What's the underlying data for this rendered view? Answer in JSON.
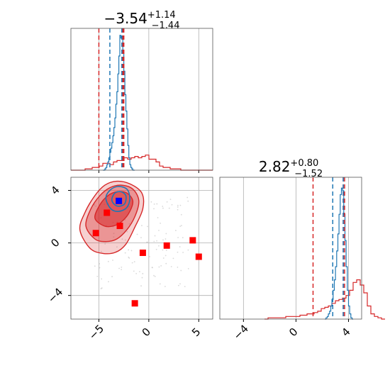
{
  "chart_data": {
    "type": "corner",
    "colors": {
      "red": "#d62728",
      "blue": "#1f77b4",
      "marker_blue": "#0000ff",
      "marker_red": "#ff0000",
      "grid": "#b0b0b0",
      "scatter": "#c0c0c0"
    },
    "grid": true,
    "param1": {
      "title": {
        "median": "−3.54",
        "plus": "+1.14",
        "minus": "−1.44"
      },
      "range": [
        -7.8,
        6.4
      ],
      "ticks": [
        -5,
        0,
        5
      ],
      "tick_labels": [
        "−5",
        "0",
        "5"
      ],
      "red_quantiles": [
        -5.0,
        -2.6,
        -2.5
      ],
      "blue_quantiles": [
        -3.9,
        -2.7
      ],
      "hist_red": {
        "x0": -7.8,
        "dx": 0.355,
        "counts": [
          0,
          0,
          0,
          0,
          1,
          1,
          2,
          2,
          3,
          5,
          5,
          4,
          6,
          7,
          7,
          9,
          8,
          9,
          10,
          9,
          10,
          11,
          8,
          8,
          6,
          3,
          2,
          2,
          1,
          1,
          1,
          0,
          0,
          0,
          0,
          0,
          0,
          0,
          0,
          0
        ]
      },
      "hist_blue": {
        "x0": -4.6,
        "dx": 0.1,
        "counts": [
          0,
          0,
          1,
          2,
          4,
          6,
          9,
          13,
          16,
          20,
          25,
          31,
          38,
          48,
          57,
          70,
          83,
          98,
          96,
          97,
          85,
          72,
          55,
          43,
          30,
          18,
          9,
          4,
          2,
          1,
          0,
          0
        ]
      },
      "hist_ymax": 100
    },
    "param2": {
      "title": {
        "median": "2.82",
        "plus": "+0.80",
        "minus": "−1.52"
      },
      "range": [
        -5.8,
        5.0
      ],
      "ticks": [
        -4,
        0,
        4
      ],
      "tick_labels": [
        "−4",
        "0",
        "4"
      ],
      "red_quantiles": [
        1.3,
        3.6,
        3.7
      ],
      "blue_quantiles": [
        2.8,
        3.6
      ],
      "hist_red": {
        "x0": -2.4,
        "dx": 0.27,
        "counts": [
          0,
          1,
          1,
          1,
          1,
          1,
          2,
          2,
          2,
          2,
          3,
          3,
          4,
          4,
          5,
          6,
          8,
          9,
          10,
          12,
          14,
          15,
          16,
          18,
          22,
          28,
          30,
          26,
          20,
          10,
          4,
          2,
          1,
          0
        ]
      },
      "hist_blue": {
        "x0": 2.2,
        "dx": 0.09,
        "counts": [
          0,
          1,
          2,
          4,
          6,
          10,
          15,
          22,
          30,
          40,
          52,
          65,
          80,
          95,
          100,
          98,
          80,
          60,
          40,
          22,
          10,
          4,
          1,
          0
        ]
      },
      "hist_ymax": 105
    },
    "scatter_2d": {
      "x_range": [
        -7.8,
        6.4
      ],
      "y_range": [
        -5.8,
        5.0
      ],
      "x_ticks": [
        -5,
        0,
        5
      ],
      "x_tick_labels": [
        "−5",
        "0",
        "5"
      ],
      "y_ticks": [
        -4,
        0,
        4
      ],
      "y_tick_labels": [
        "−4",
        "0",
        "4"
      ],
      "red_markers": [
        {
          "x": -5.3,
          "y": 0.75
        },
        {
          "x": -4.2,
          "y": 2.3
        },
        {
          "x": -2.9,
          "y": 1.3
        },
        {
          "x": -0.6,
          "y": -0.75
        },
        {
          "x": 1.8,
          "y": -0.2
        },
        {
          "x": 4.4,
          "y": 0.2
        },
        {
          "x": 5.0,
          "y": -1.05
        },
        {
          "x": -1.4,
          "y": -4.6
        }
      ],
      "blue_marker": {
        "x": -3.0,
        "y": 3.2
      },
      "red_contours": [
        [
          [
            -6.9,
            1.0
          ],
          [
            -6.4,
            2.3
          ],
          [
            -5.4,
            3.6
          ],
          [
            -4.4,
            4.4
          ],
          [
            -3.2,
            4.7
          ],
          [
            -1.9,
            4.5
          ],
          [
            -0.7,
            3.8
          ],
          [
            -0.6,
            2.6
          ],
          [
            -1.4,
            1.2
          ],
          [
            -2.3,
            -0.1
          ],
          [
            -3.3,
            -0.7
          ],
          [
            -4.6,
            -0.8
          ],
          [
            -5.9,
            -0.4
          ]
        ],
        [
          [
            -6.3,
            1.3
          ],
          [
            -5.8,
            2.6
          ],
          [
            -4.9,
            3.6
          ],
          [
            -3.9,
            4.2
          ],
          [
            -2.8,
            4.4
          ],
          [
            -1.6,
            4.1
          ],
          [
            -1.0,
            3.2
          ],
          [
            -1.4,
            2.0
          ],
          [
            -2.2,
            1.0
          ],
          [
            -3.2,
            0.3
          ],
          [
            -4.3,
            0.1
          ],
          [
            -5.4,
            0.3
          ]
        ],
        [
          [
            -5.4,
            1.9
          ],
          [
            -4.9,
            2.9
          ],
          [
            -4.1,
            3.6
          ],
          [
            -3.2,
            3.9
          ],
          [
            -2.2,
            3.8
          ],
          [
            -1.6,
            3.2
          ],
          [
            -1.9,
            2.4
          ],
          [
            -2.6,
            1.7
          ],
          [
            -3.5,
            1.3
          ],
          [
            -4.5,
            1.3
          ]
        ]
      ],
      "blue_contours": [
        [
          [
            -4.3,
            3.4
          ],
          [
            -3.9,
            4.0
          ],
          [
            -3.1,
            4.3
          ],
          [
            -2.2,
            4.1
          ],
          [
            -1.9,
            3.4
          ],
          [
            -2.2,
            2.7
          ],
          [
            -3.0,
            2.4
          ],
          [
            -3.8,
            2.6
          ]
        ],
        [
          [
            -3.7,
            3.3
          ],
          [
            -3.4,
            3.8
          ],
          [
            -2.8,
            3.9
          ],
          [
            -2.3,
            3.6
          ],
          [
            -2.4,
            3.0
          ],
          [
            -2.9,
            2.8
          ],
          [
            -3.4,
            2.9
          ]
        ]
      ]
    }
  }
}
